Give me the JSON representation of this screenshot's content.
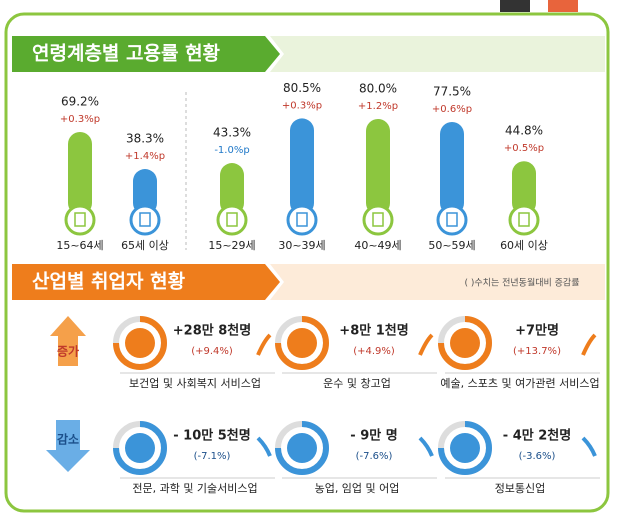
{
  "employment": {
    "title": "연령계층별 고용률 현황",
    "groups": [
      {
        "category": "15~64세",
        "value": 69.2,
        "value_label": "69.2%",
        "change": "+0.3%p"
      },
      {
        "category": "65세 이상",
        "value": 38.3,
        "value_label": "38.3%",
        "change": "+1.4%p"
      },
      {
        "category": "15~29세",
        "value": 43.3,
        "value_label": "43.3%",
        "change": "-1.0%p"
      },
      {
        "category": "30~39세",
        "value": 80.5,
        "value_label": "80.5%",
        "change": "+0.3%p"
      },
      {
        "category": "40~49세",
        "value": 80.0,
        "value_label": "80.0%",
        "change": "+1.2%p"
      },
      {
        "category": "50~59세",
        "value": 77.5,
        "value_label": "77.5%",
        "change": "+0.6%p"
      },
      {
        "category": "60세 이상",
        "value": 44.8,
        "value_label": "44.8%",
        "change": "+0.5%p"
      }
    ]
  },
  "industry": {
    "title": "산업별 취업자 현황",
    "note": "( )수치는 전년동월대비 증감률",
    "increase": {
      "label": "증가",
      "items": [
        {
          "amount": "+28만 8천명",
          "change": "(+9.4%)",
          "industry": "보건업 및 사회복지 서비스업"
        },
        {
          "amount": "+8만 1천명",
          "change": "(+4.9%)",
          "industry": "운수 및 창고업"
        },
        {
          "amount": "+7만명",
          "change": "(+13.7%)",
          "industry": "예술, 스포츠 및 여가관련 서비스업"
        }
      ]
    },
    "decrease": {
      "label": "감소",
      "items": [
        {
          "amount": "- 10만 5천명",
          "change": "(-7.1%)",
          "industry": "전문, 과학 및 기술서비스업"
        },
        {
          "amount": "- 9만 명",
          "change": "(-7.6%)",
          "industry": "농업, 임업 및 어업"
        },
        {
          "amount": "- 4만 2천명",
          "change": "(-3.6%)",
          "industry": "정보통신업"
        }
      ]
    }
  }
}
